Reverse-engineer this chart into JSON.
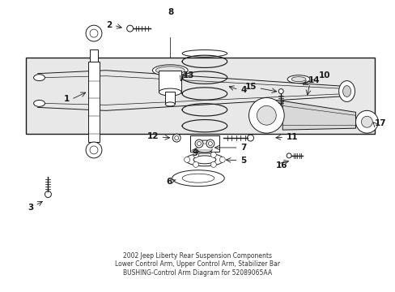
{
  "bg_color": "#ffffff",
  "box_bg": "#e8e8e8",
  "lc": "#1a1a1a",
  "title": "2002 Jeep Liberty Rear Suspension Components\nLower Control Arm, Upper Control Arm, Stabilizer Bar\nBUSHING-Control Arm Diagram for 52089065AA",
  "title_fontsize": 5.5,
  "fs": 7.5
}
